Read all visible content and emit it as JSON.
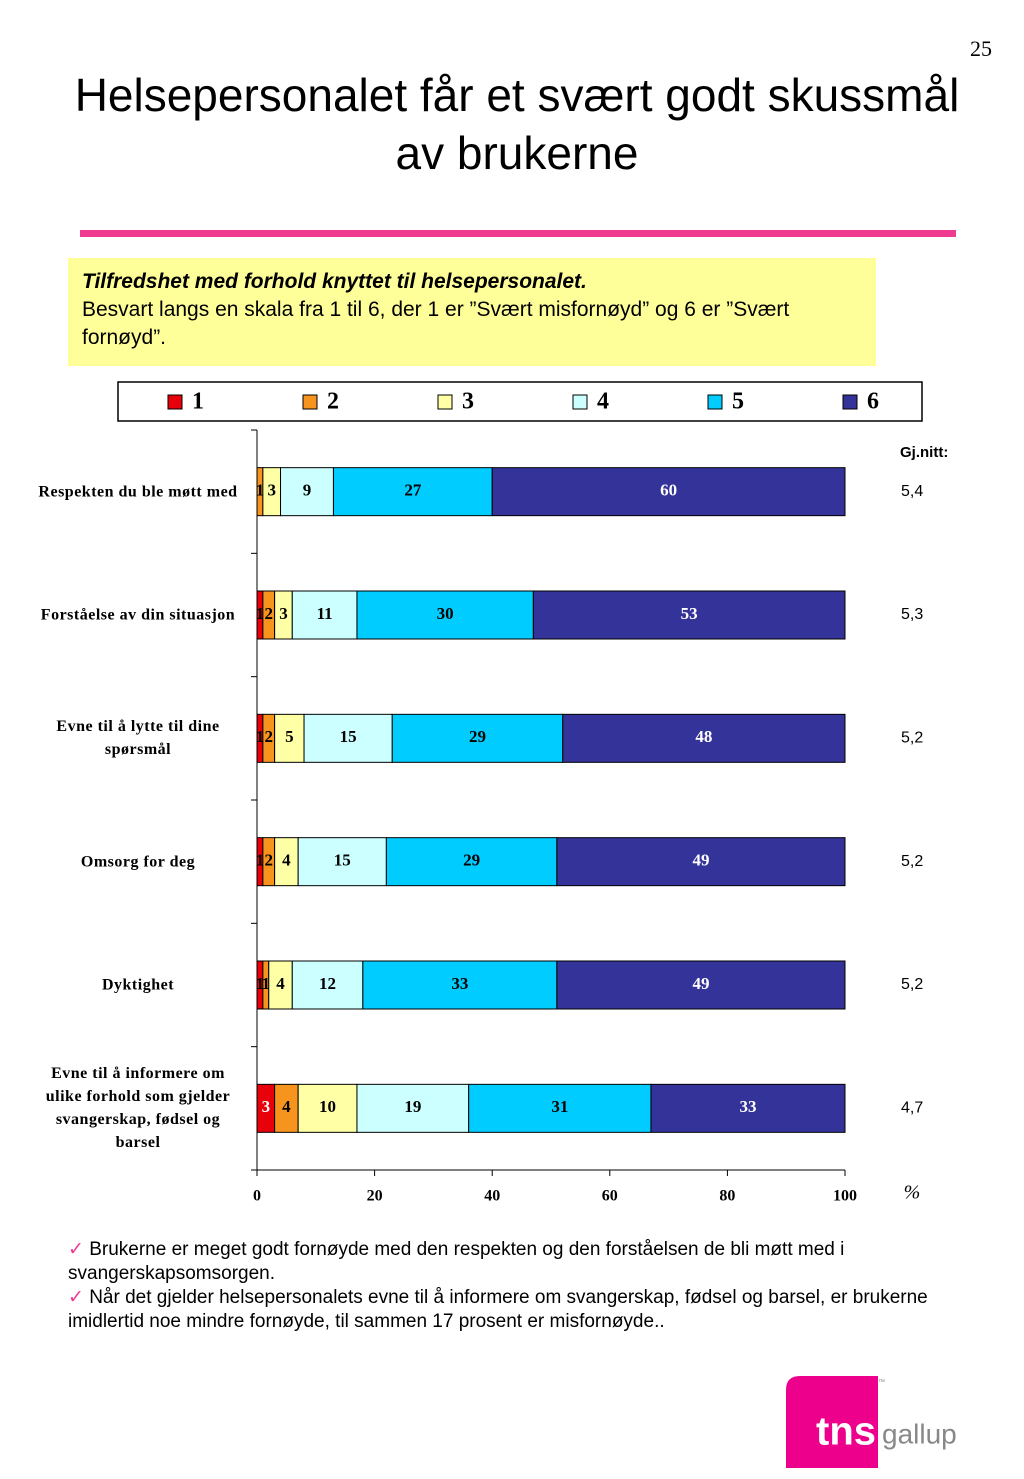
{
  "page_number": "25",
  "title": "Helsepersonalet får et svært godt skussmål av brukerne",
  "info_box": {
    "heading": "Tilfredshet med forhold knyttet til helsepersonalet.",
    "text": "Besvart langs en skala fra 1 til 6, der 1 er ”Svært misfornøyd” og 6 er ”Svært fornøyd”."
  },
  "chart_data": {
    "type": "stacked_bar_horizontal",
    "categories": [
      "Respekten du ble møtt med",
      "Forståelse av din situasjon",
      "Evne til å lytte til dine spørsmål",
      "Omsorg for deg",
      "Dyktighet",
      "Evne til å informere om ulike forhold som gjelder svangerskap, fødsel og barsel"
    ],
    "series": [
      {
        "name": "1",
        "color": "#e8000b",
        "values": [
          0,
          1,
          1,
          1,
          1,
          3
        ]
      },
      {
        "name": "2",
        "color": "#f7941d",
        "values": [
          1,
          2,
          2,
          2,
          1,
          4
        ]
      },
      {
        "name": "3",
        "color": "#ffffa6",
        "values": [
          3,
          3,
          5,
          4,
          4,
          10
        ]
      },
      {
        "name": "4",
        "color": "#ccffff",
        "values": [
          9,
          11,
          15,
          15,
          12,
          19
        ]
      },
      {
        "name": "5",
        "color": "#00ccff",
        "values": [
          27,
          30,
          29,
          29,
          33,
          31
        ]
      },
      {
        "name": "6",
        "color": "#333399",
        "values": [
          60,
          53,
          48,
          49,
          49,
          33
        ]
      }
    ],
    "xlim": [
      0,
      100
    ],
    "xticks": [
      0,
      20,
      40,
      60,
      80,
      100
    ],
    "x_unit": "%",
    "average_heading": "Gj.nitt:",
    "averages": [
      "5,4",
      "5,3",
      "5,2",
      "5,2",
      "5,2",
      "4,7"
    ]
  },
  "bullets": [
    "Brukerne er meget godt fornøyde med den respekten og den forståelsen de bli møtt med i svangerskapsomsorgen.",
    "Når det gjelder helsepersonalets evne til å informere om svangerskap, fødsel og barsel, er brukerne imidlertid noe mindre fornøyde, til sammen 17 prosent er misfornøyde.."
  ],
  "logo": {
    "main": "tns",
    "sub": "gallup",
    "tm": "™"
  }
}
